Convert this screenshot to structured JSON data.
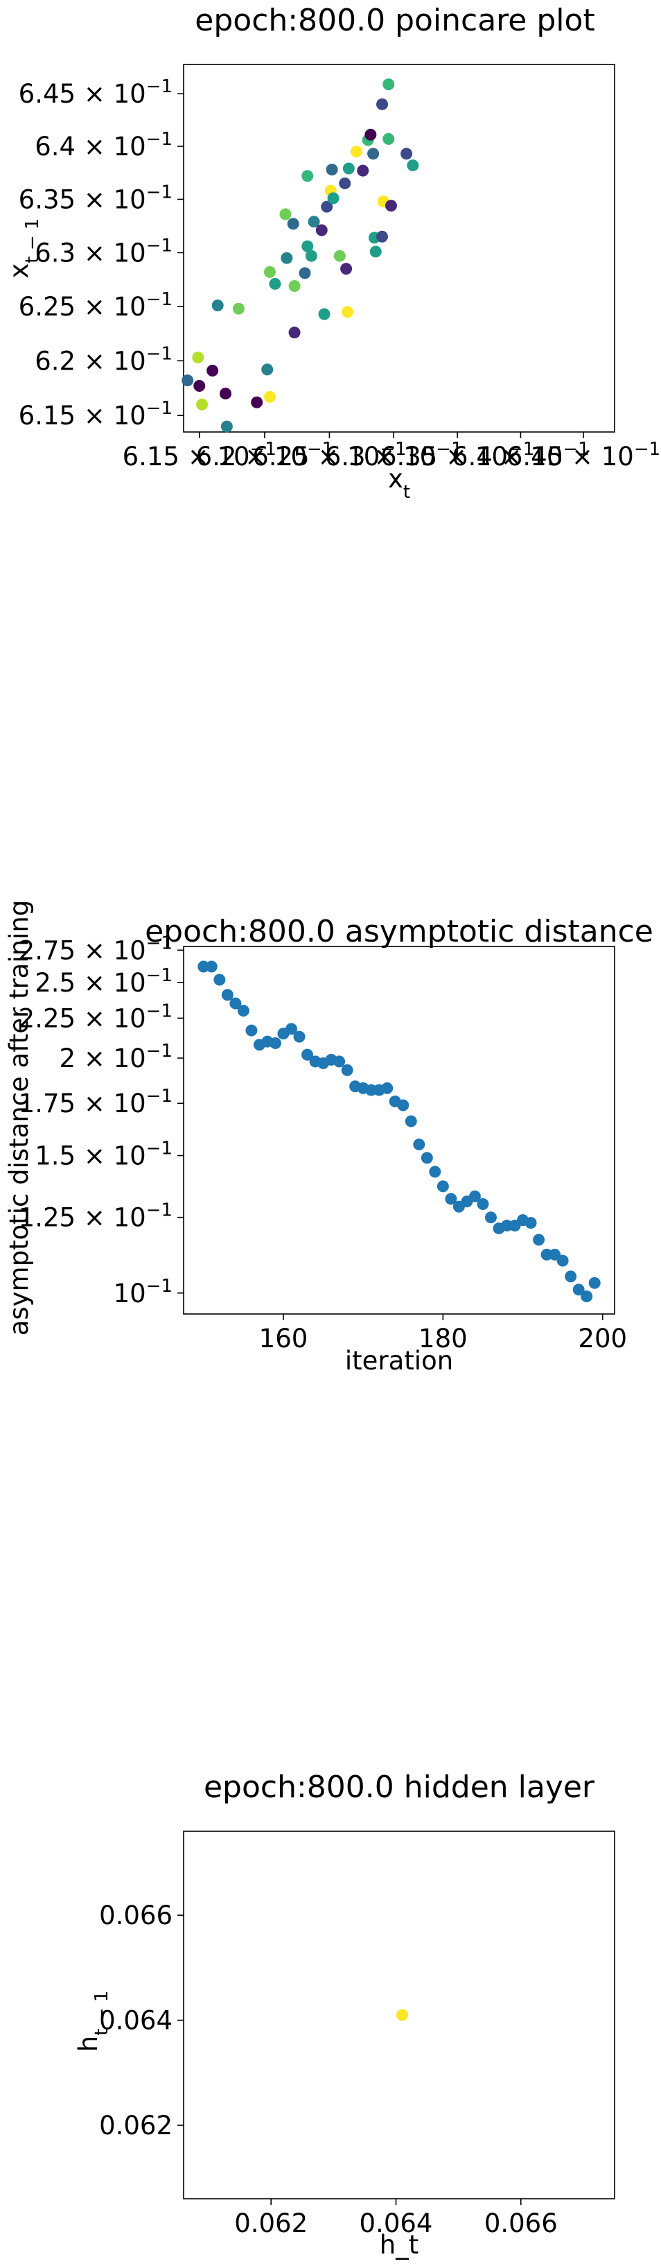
{
  "chart_data": [
    {
      "type": "scatter",
      "title": "epoch:800.0 poincare plot",
      "xlabel": "x_t",
      "ylabel": "x_{t-1}",
      "xscale": "log",
      "yscale": "log",
      "xlim": [
        0.6138,
        0.6475
      ],
      "ylim": [
        0.6135,
        0.6478
      ],
      "xticks": [
        0.615,
        0.62,
        0.625,
        0.63,
        0.635,
        0.64,
        0.645
      ],
      "xticklabels": [
        "6.15 × 10^-1",
        "6.2 × 10^-1",
        "6.25 × 10^-1",
        "6.3 × 10^-1",
        "6.35 × 10^-1",
        "6.4 × 10^-1",
        "6.45 × 10^-1"
      ],
      "yticks": [
        0.615,
        0.62,
        0.625,
        0.63,
        0.635,
        0.64,
        0.645
      ],
      "yticklabels": [
        "6.15 × 10^-1",
        "6.2 × 10^-1",
        "6.25 × 10^-1",
        "6.3 × 10^-1",
        "6.35 × 10^-1",
        "6.4 × 10^-1",
        "6.45 × 10^-1"
      ],
      "colormap": "viridis",
      "grid": false,
      "points": [
        {
          "x": 0.6141,
          "y": 0.6182,
          "c": 0.35
        },
        {
          "x": 0.6149,
          "y": 0.6203,
          "c": 0.85
        },
        {
          "x": 0.615,
          "y": 0.6177,
          "c": 0.0
        },
        {
          "x": 0.6152,
          "y": 0.616,
          "c": 0.85
        },
        {
          "x": 0.616,
          "y": 0.6191,
          "c": 0.0
        },
        {
          "x": 0.6164,
          "y": 0.6251,
          "c": 0.4
        },
        {
          "x": 0.617,
          "y": 0.617,
          "c": 0.0
        },
        {
          "x": 0.6171,
          "y": 0.614,
          "c": 0.45
        },
        {
          "x": 0.618,
          "y": 0.6248,
          "c": 0.8
        },
        {
          "x": 0.6194,
          "y": 0.6162,
          "c": 0.05
        },
        {
          "x": 0.6202,
          "y": 0.6192,
          "c": 0.45
        },
        {
          "x": 0.6204,
          "y": 0.6167,
          "c": 0.95
        },
        {
          "x": 0.6204,
          "y": 0.6282,
          "c": 0.75
        },
        {
          "x": 0.6208,
          "y": 0.6271,
          "c": 0.5
        },
        {
          "x": 0.6216,
          "y": 0.6336,
          "c": 0.75
        },
        {
          "x": 0.6217,
          "y": 0.6295,
          "c": 0.4
        },
        {
          "x": 0.6222,
          "y": 0.6327,
          "c": 0.3
        },
        {
          "x": 0.6223,
          "y": 0.6269,
          "c": 0.8
        },
        {
          "x": 0.6223,
          "y": 0.6226,
          "c": 0.1
        },
        {
          "x": 0.6231,
          "y": 0.6281,
          "c": 0.35
        },
        {
          "x": 0.6233,
          "y": 0.6372,
          "c": 0.7
        },
        {
          "x": 0.6233,
          "y": 0.6306,
          "c": 0.6
        },
        {
          "x": 0.6236,
          "y": 0.6297,
          "c": 0.55
        },
        {
          "x": 0.6238,
          "y": 0.6329,
          "c": 0.45
        },
        {
          "x": 0.6244,
          "y": 0.6321,
          "c": 0.1
        },
        {
          "x": 0.6246,
          "y": 0.6243,
          "c": 0.5
        },
        {
          "x": 0.6248,
          "y": 0.6343,
          "c": 0.25
        },
        {
          "x": 0.6251,
          "y": 0.6358,
          "c": 0.95
        },
        {
          "x": 0.6252,
          "y": 0.6378,
          "c": 0.3
        },
        {
          "x": 0.6253,
          "y": 0.6351,
          "c": 0.55
        },
        {
          "x": 0.6258,
          "y": 0.6297,
          "c": 0.75
        },
        {
          "x": 0.6262,
          "y": 0.6365,
          "c": 0.2
        },
        {
          "x": 0.6263,
          "y": 0.6285,
          "c": 0.1
        },
        {
          "x": 0.6264,
          "y": 0.6245,
          "c": 0.95
        },
        {
          "x": 0.6265,
          "y": 0.6379,
          "c": 0.6
        },
        {
          "x": 0.6271,
          "y": 0.6395,
          "c": 0.95
        },
        {
          "x": 0.6276,
          "y": 0.6377,
          "c": 0.15
        },
        {
          "x": 0.628,
          "y": 0.6406,
          "c": 0.7
        },
        {
          "x": 0.6282,
          "y": 0.6411,
          "c": 0.05
        },
        {
          "x": 0.6284,
          "y": 0.6393,
          "c": 0.3
        },
        {
          "x": 0.6285,
          "y": 0.6314,
          "c": 0.5
        },
        {
          "x": 0.6286,
          "y": 0.6301,
          "c": 0.55
        },
        {
          "x": 0.6291,
          "y": 0.644,
          "c": 0.25
        },
        {
          "x": 0.6291,
          "y": 0.6315,
          "c": 0.2
        },
        {
          "x": 0.6292,
          "y": 0.6348,
          "c": 0.95
        },
        {
          "x": 0.6296,
          "y": 0.6459,
          "c": 0.65
        },
        {
          "x": 0.6296,
          "y": 0.6407,
          "c": 0.65
        },
        {
          "x": 0.6298,
          "y": 0.6344,
          "c": 0.1
        },
        {
          "x": 0.631,
          "y": 0.6393,
          "c": 0.25
        },
        {
          "x": 0.6315,
          "y": 0.6382,
          "c": 0.6
        }
      ]
    },
    {
      "type": "scatter",
      "title": "epoch:800.0 asymptotic distance",
      "xlabel": "iteration",
      "ylabel": "asymptotic distance after training",
      "yscale": "log",
      "xlim": [
        147.5,
        201.5
      ],
      "ylim": [
        0.094,
        0.278
      ],
      "xticks": [
        160,
        180,
        200
      ],
      "xticklabels": [
        "160",
        "180",
        "200"
      ],
      "yticks": [
        0.1,
        0.125,
        0.15,
        0.175,
        0.2,
        0.225,
        0.25,
        0.275
      ],
      "yticklabels": [
        "10^-1",
        "1.25 × 10^-1",
        "1.5 × 10^-1",
        "1.75 × 10^-1",
        "2 × 10^-1",
        "2.25 × 10^-1",
        "2.5 × 10^-1",
        "2.75 × 10^-1"
      ],
      "color": "#1f77b4",
      "grid": false,
      "x": [
        150,
        151,
        152,
        153,
        154,
        155,
        156,
        157,
        158,
        159,
        160,
        161,
        162,
        163,
        164,
        165,
        166,
        167,
        168,
        169,
        170,
        171,
        172,
        173,
        174,
        175,
        176,
        177,
        178,
        179,
        180,
        181,
        182,
        183,
        184,
        185,
        186,
        187,
        188,
        189,
        190,
        191,
        192,
        193,
        194,
        195,
        196,
        197,
        198,
        199
      ],
      "y": [
        0.262,
        0.262,
        0.252,
        0.241,
        0.235,
        0.23,
        0.217,
        0.208,
        0.21,
        0.209,
        0.215,
        0.218,
        0.213,
        0.202,
        0.198,
        0.197,
        0.199,
        0.198,
        0.193,
        0.184,
        0.183,
        0.182,
        0.182,
        0.183,
        0.176,
        0.174,
        0.166,
        0.155,
        0.149,
        0.143,
        0.137,
        0.132,
        0.129,
        0.131,
        0.133,
        0.13,
        0.125,
        0.121,
        0.122,
        0.122,
        0.124,
        0.123,
        0.117,
        0.112,
        0.112,
        0.11,
        0.105,
        0.101,
        0.099,
        0.103
      ]
    },
    {
      "type": "scatter",
      "title": "epoch:800.0 hidden layer",
      "xlabel": "h_t",
      "ylabel": "h_{t-1}",
      "xlim": [
        0.0606,
        0.0675
      ],
      "ylim": [
        0.0606,
        0.0676
      ],
      "xticks": [
        0.062,
        0.064,
        0.066
      ],
      "xticklabels": [
        "0.062",
        "0.064",
        "0.066"
      ],
      "yticks": [
        0.062,
        0.064,
        0.066
      ],
      "yticklabels": [
        "0.062",
        "0.064",
        "0.066"
      ],
      "grid": false,
      "points": [
        {
          "x": 0.0641,
          "y": 0.0641,
          "color": "#fde725"
        }
      ]
    }
  ]
}
